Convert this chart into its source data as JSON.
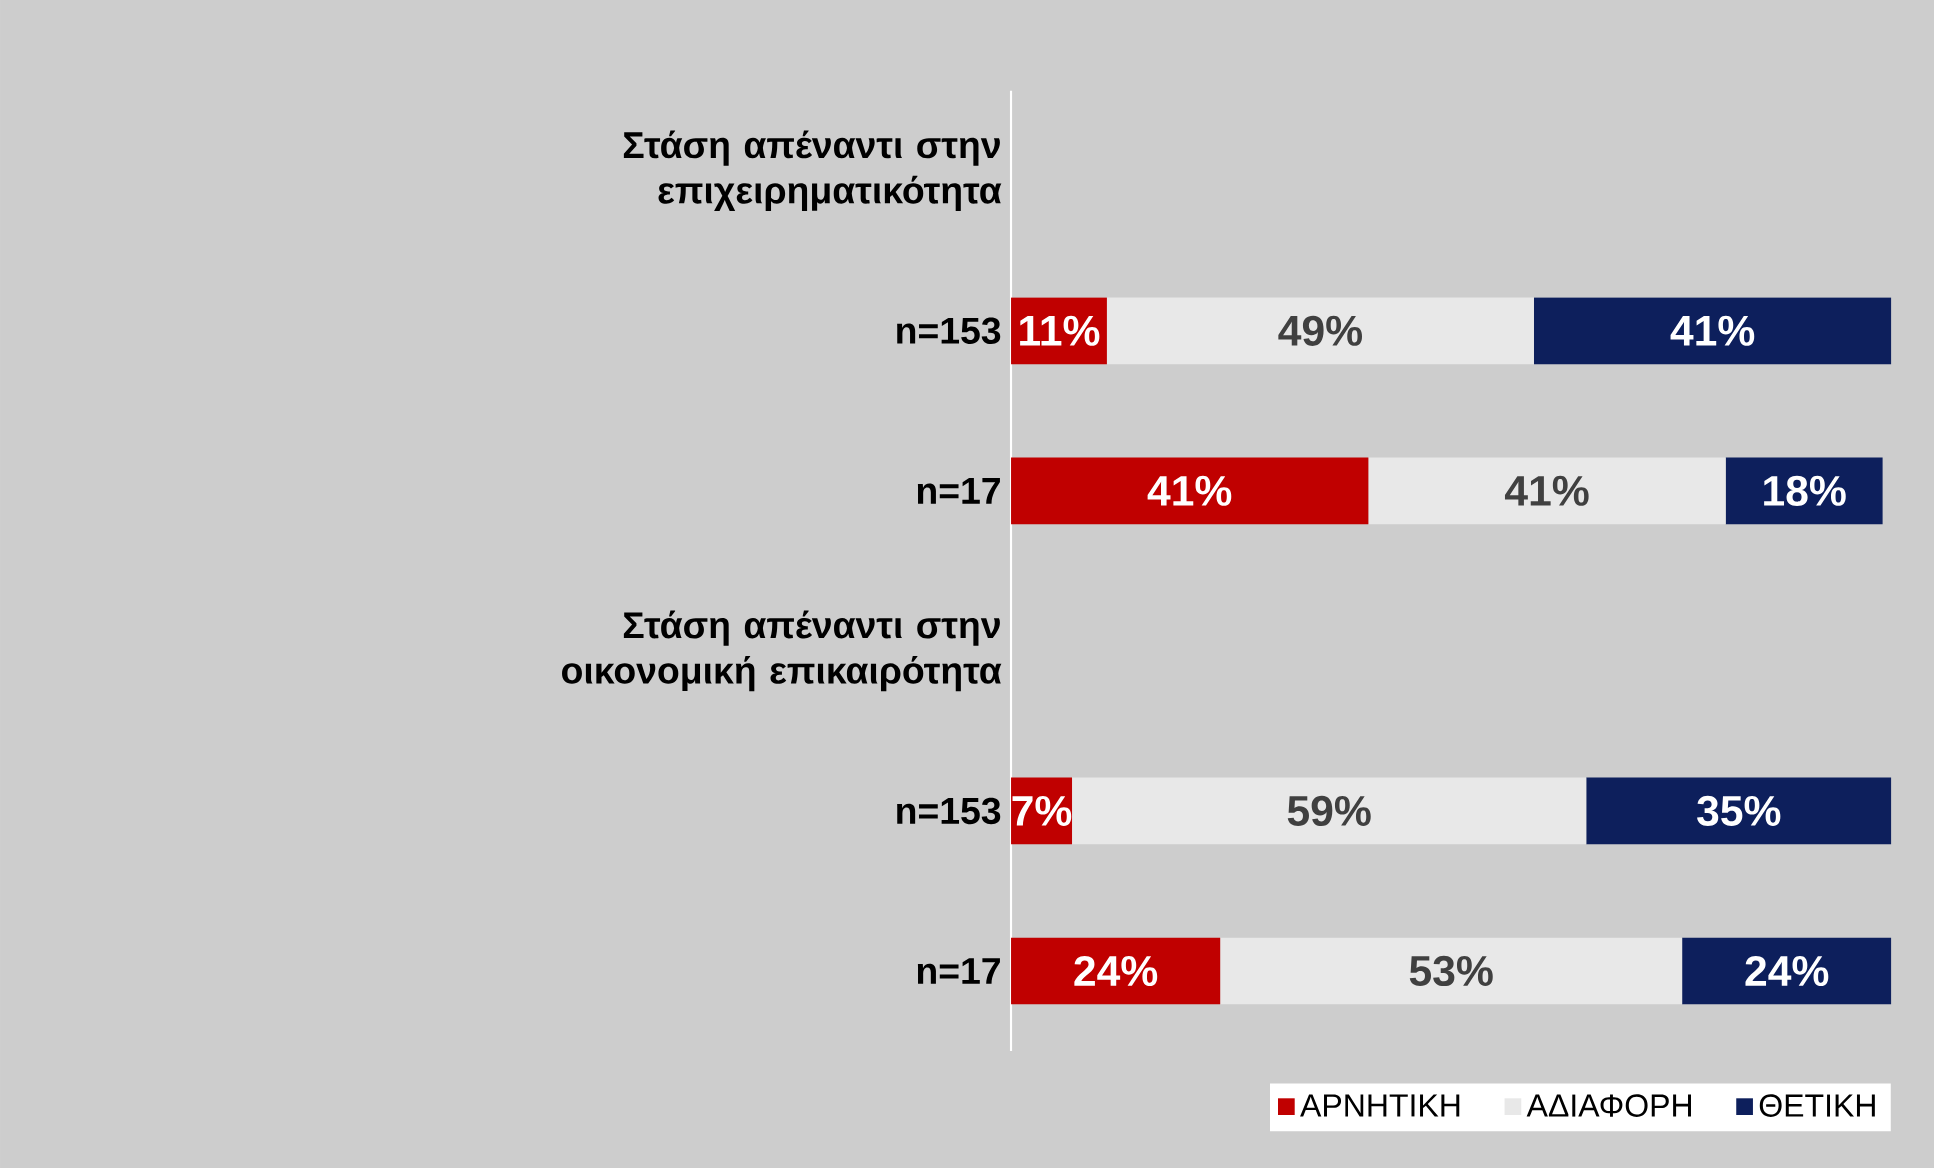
{
  "chart_data": {
    "type": "bar",
    "orientation": "horizontal",
    "stacked": true,
    "tick_labels": "y",
    "legend": "bottom right",
    "categories": [
      "Στάση απέναντι στην επιχειρηματικότητα",
      "n=153",
      "n=17",
      "Στάση απέναντι στην οικονομική επικαιρότητα",
      "n=153",
      "n=17"
    ],
    "series": [
      {
        "name": "ΑΡΝΗΤΙΚΗ",
        "color": "#c00000",
        "values": [
          null,
          11,
          41,
          null,
          7,
          24
        ],
        "value_labels": [
          null,
          "11%",
          "41%",
          null,
          "7%",
          "24%"
        ]
      },
      {
        "name": "ΑΔΙΑΦΟΡΗ",
        "color": "#e8e8e8",
        "values": [
          null,
          49,
          41,
          null,
          59,
          53
        ],
        "value_labels": [
          null,
          "49%",
          "41%",
          null,
          "59%",
          "53%"
        ]
      },
      {
        "name": "ΘΕΤΙΚΗ",
        "color": "#0d1f5c",
        "values": [
          null,
          41,
          18,
          null,
          35,
          24
        ],
        "value_labels": [
          null,
          "41%",
          "18%",
          null,
          "35%",
          "24%"
        ]
      }
    ]
  }
}
